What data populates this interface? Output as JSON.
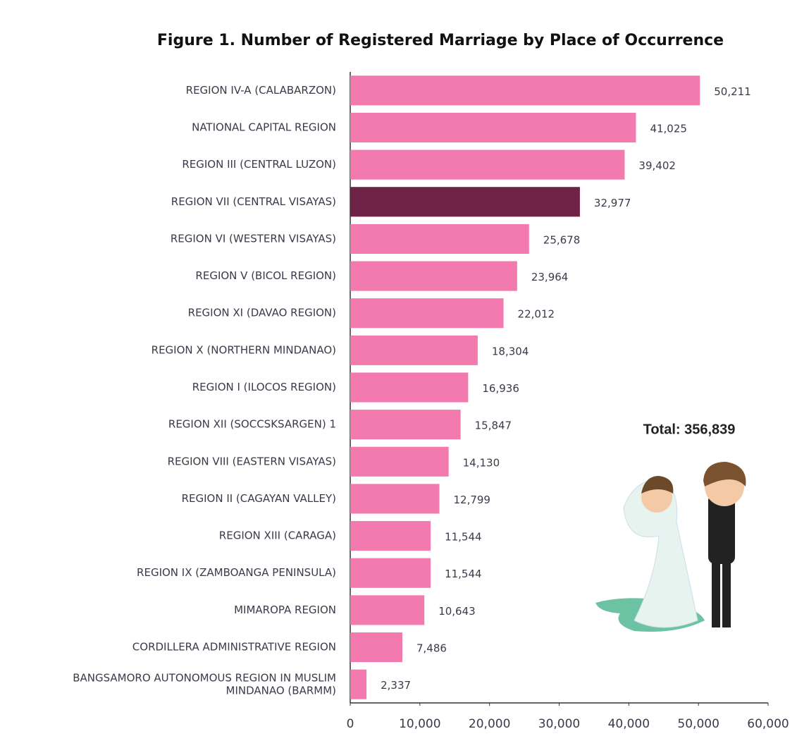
{
  "chart_data": {
    "type": "hbar",
    "title": "Figure 1. Number of Registered Marriage by Place of Occurrence",
    "categories": [
      "REGION IV-A (CALABARZON)",
      "NATIONAL CAPITAL REGION",
      "REGION III (CENTRAL LUZON)",
      "REGION VII (CENTRAL VISAYAS)",
      "REGION VI (WESTERN VISAYAS)",
      "REGION V (BICOL REGION)",
      "REGION XI (DAVAO REGION)",
      "REGION X (NORTHERN MINDANAO)",
      "REGION I (ILOCOS REGION)",
      "REGION XII (SOCCSKSARGEN) 1",
      "REGION VIII (EASTERN VISAYAS)",
      "REGION II (CAGAYAN VALLEY)",
      "REGION XIII (CARAGA)",
      "REGION IX (ZAMBOANGA PENINSULA)",
      "MIMAROPA REGION",
      "CORDILLERA ADMINISTRATIVE REGION",
      "BANGSAMORO AUTONOMOUS REGION IN MUSLIM MINDANAO (BARMM)"
    ],
    "values": [
      50211,
      41025,
      39402,
      32977,
      25678,
      23964,
      22012,
      18304,
      16936,
      15847,
      14130,
      12799,
      11544,
      11544,
      10643,
      7486,
      2337
    ],
    "value_labels": [
      "50,211",
      "41,025",
      "39,402",
      "32,977",
      "25,678",
      "23,964",
      "22,012",
      "18,304",
      "16,936",
      "15,847",
      "14,130",
      "12,799",
      "11,544",
      "11,544",
      "10,643",
      "7,486",
      "2,337"
    ],
    "colors": [
      "#f27aae",
      "#f27aae",
      "#f27aae",
      "#6e2347",
      "#f27aae",
      "#f27aae",
      "#f27aae",
      "#f27aae",
      "#f27aae",
      "#f27aae",
      "#f27aae",
      "#f27aae",
      "#f27aae",
      "#f27aae",
      "#f27aae",
      "#f27aae",
      "#f27aae"
    ],
    "xlim": [
      0,
      60000
    ],
    "xticks": [
      0,
      {
        "value": 10000,
        "label": "10,000"
      },
      {
        "value": 20000,
        "label": "20,000"
      },
      {
        "value": 30000,
        "label": "30,000"
      },
      {
        "value": 40000,
        "label": "40,000"
      },
      {
        "value": 50000,
        "label": "50,000"
      },
      {
        "value": 60000,
        "label": "60,000"
      }
    ],
    "annotation": "Total: 356,839"
  }
}
